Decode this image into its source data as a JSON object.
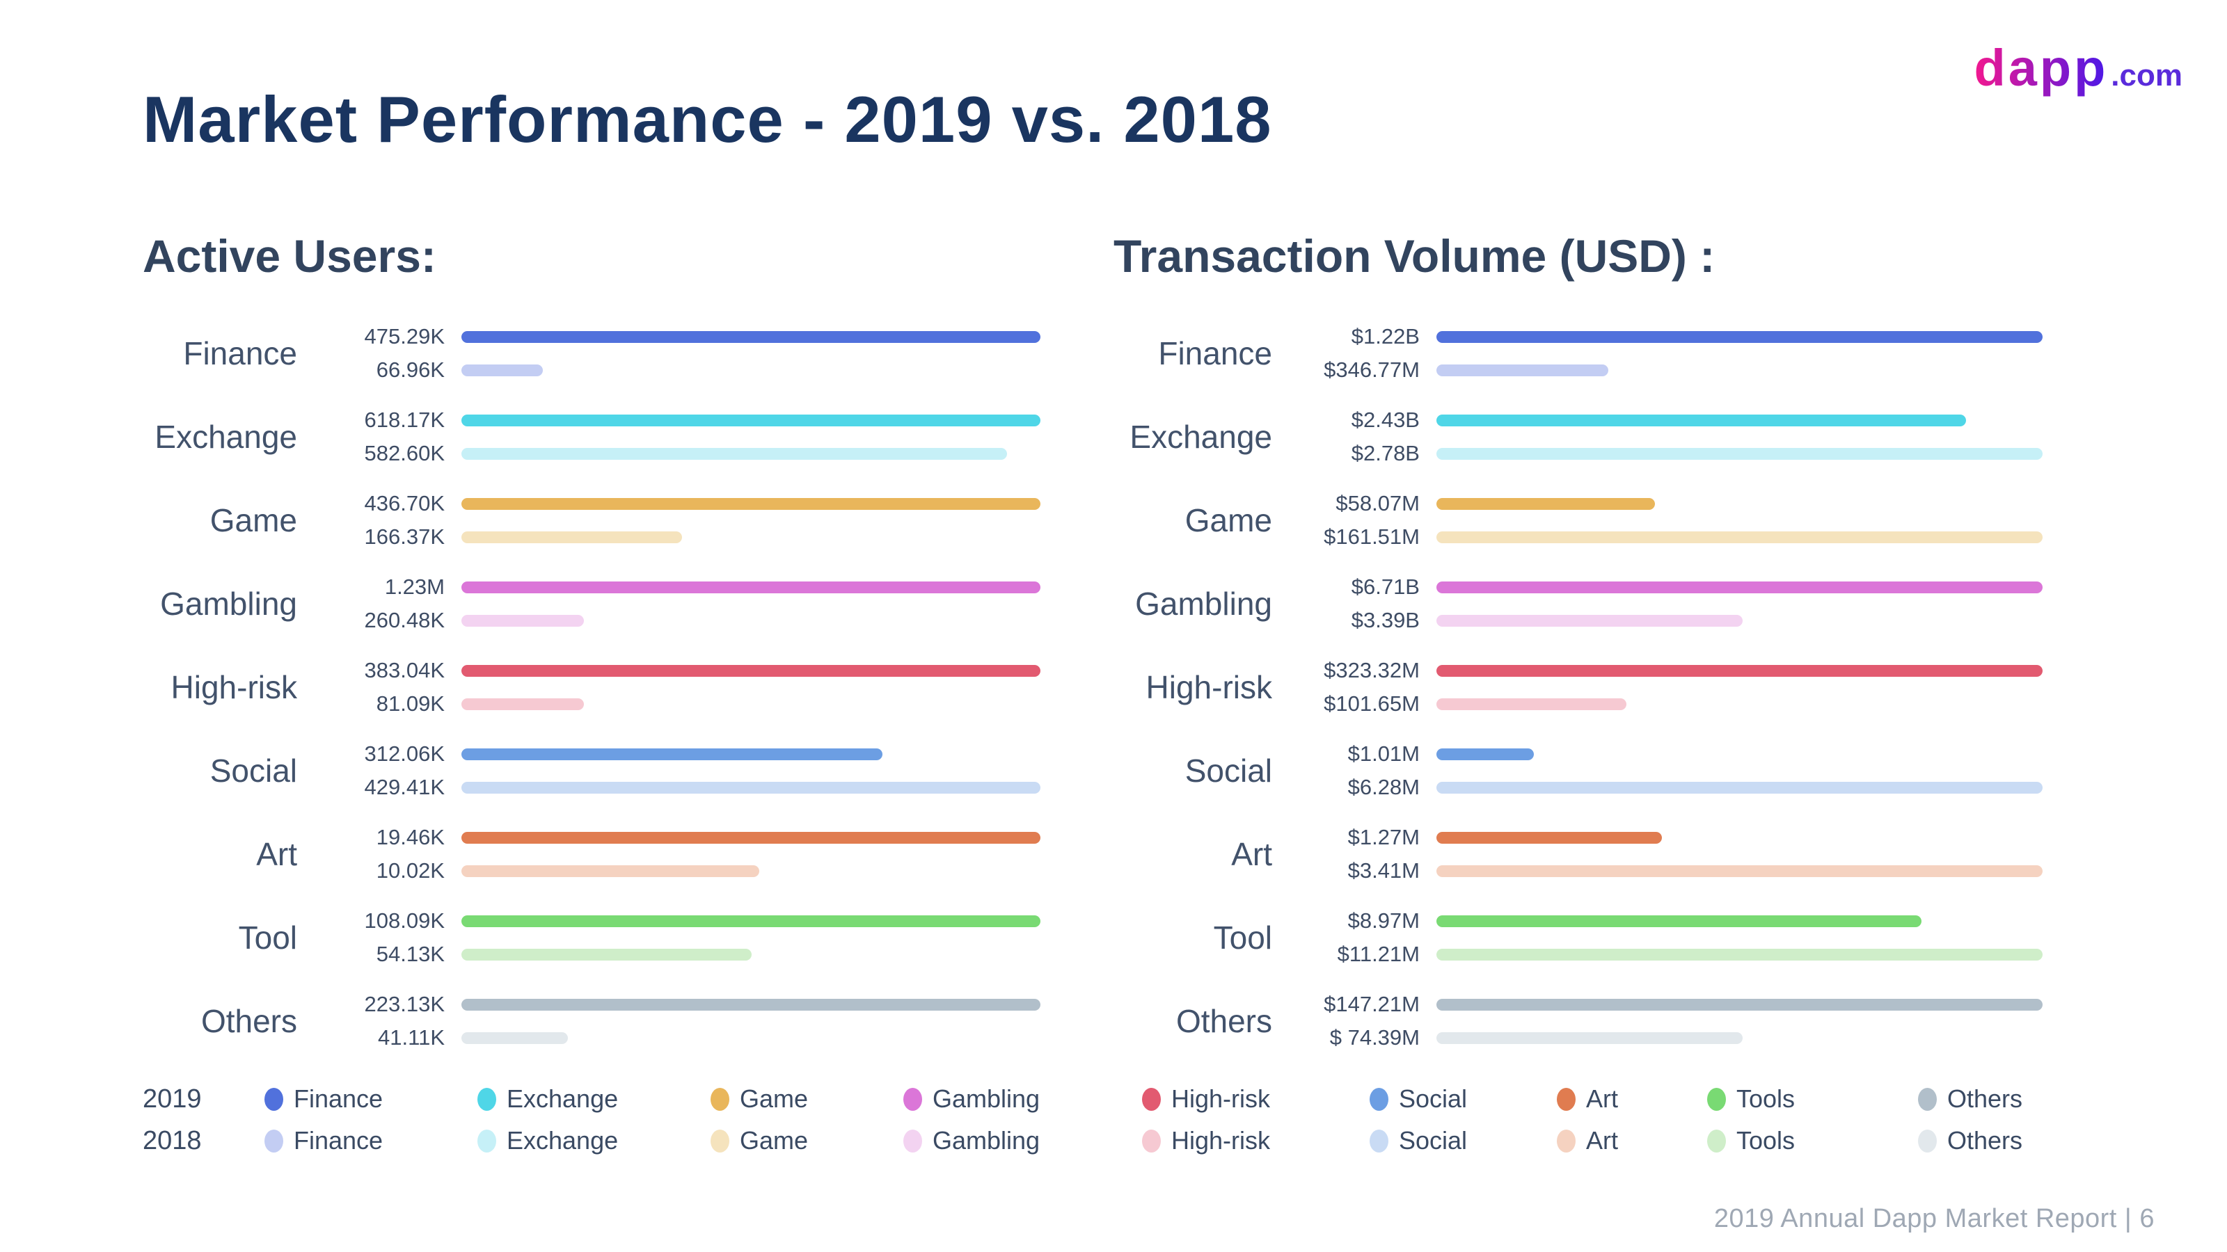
{
  "title": "Market Performance - 2019 vs. 2018",
  "logo": {
    "brand": "dapp",
    "suffix": ".com",
    "gradient": [
      "#F2188F",
      "#4A18E8"
    ],
    "suffix_color": "#5A2BDB"
  },
  "footer": {
    "text": "2019 Annual Dapp Market Report  |  6"
  },
  "palette": [
    {
      "category": "Finance",
      "y2019": "#5171DC",
      "y2018": "#C3CDF3"
    },
    {
      "category": "Exchange",
      "y2019": "#4FD6E7",
      "y2018": "#C6F0F7"
    },
    {
      "category": "Game",
      "y2019": "#E9B65B",
      "y2018": "#F5E3BD"
    },
    {
      "category": "Gambling",
      "y2019": "#DB76D8",
      "y2018": "#F3D3F1"
    },
    {
      "category": "High-risk",
      "y2019": "#E25A70",
      "y2018": "#F6C9D2"
    },
    {
      "category": "Social",
      "y2019": "#6C9EE3",
      "y2018": "#C9DBF4"
    },
    {
      "category": "Art",
      "y2019": "#E07C50",
      "y2018": "#F5D2C0"
    },
    {
      "category": "Tools",
      "y2019": "#79DA73",
      "y2018": "#CFEEC9"
    },
    {
      "category": "Others",
      "y2019": "#B1BFCA",
      "y2018": "#E2E8EC"
    }
  ],
  "legend": {
    "row_labels": [
      "2019",
      "2018"
    ],
    "items": [
      "Finance",
      "Exchange",
      "Game",
      "Gambling",
      "High-risk",
      "Social",
      "Art",
      "Tools",
      "Others"
    ]
  },
  "chart_data": [
    {
      "type": "bar",
      "orientation": "horizontal",
      "title": "Active Users:",
      "categories": [
        "Finance",
        "Exchange",
        "Game",
        "Gambling",
        "High-risk",
        "Social",
        "Art",
        "Tool",
        "Others"
      ],
      "series": [
        {
          "name": "2019",
          "labels": [
            "475.29K",
            "618.17K",
            "436.70K",
            "1.23M",
            "383.04K",
            "312.06K",
            "19.46K",
            "108.09K",
            "223.13K"
          ],
          "values": [
            475290,
            618170,
            436700,
            1230000,
            383040,
            312060,
            19460,
            108090,
            223130
          ]
        },
        {
          "name": "2018",
          "labels": [
            "66.96K",
            "582.60K",
            "166.37K",
            "260.48K",
            "81.09K",
            "429.41K",
            "10.02K",
            "54.13K",
            "41.11K"
          ],
          "values": [
            66960,
            582600,
            166370,
            260480,
            81090,
            429410,
            10020,
            54130,
            41110
          ]
        }
      ],
      "value_unit": "active users",
      "scaling": "each category row normalized to its own max value",
      "grid": false,
      "legend_position": "bottom"
    },
    {
      "type": "bar",
      "orientation": "horizontal",
      "title": "Transaction Volume (USD) :",
      "categories": [
        "Finance",
        "Exchange",
        "Game",
        "Gambling",
        "High-risk",
        "Social",
        "Art",
        "Tool",
        "Others"
      ],
      "series": [
        {
          "name": "2019",
          "labels": [
            "$1.22B",
            "$2.43B",
            "$58.07M",
            "$6.71B",
            "$323.32M",
            "$1.01M",
            "$1.27M",
            "$8.97M",
            "$147.21M"
          ],
          "values": [
            1220000000,
            2430000000,
            58070000,
            6710000000,
            323320000,
            1010000,
            1270000,
            8970000,
            147210000
          ]
        },
        {
          "name": "2018",
          "labels": [
            "$346.77M",
            "$2.78B",
            "$161.51M",
            "$3.39B",
            "$101.65M",
            "$6.28M",
            "$3.41M",
            "$11.21M",
            "$ 74.39M"
          ],
          "values": [
            346770000,
            2780000000,
            161510000,
            3390000000,
            101650000,
            6280000,
            3410000,
            11210000,
            74390000
          ]
        }
      ],
      "value_unit": "USD",
      "scaling": "each category row normalized to its own max value",
      "grid": false,
      "legend_position": "bottom"
    }
  ]
}
